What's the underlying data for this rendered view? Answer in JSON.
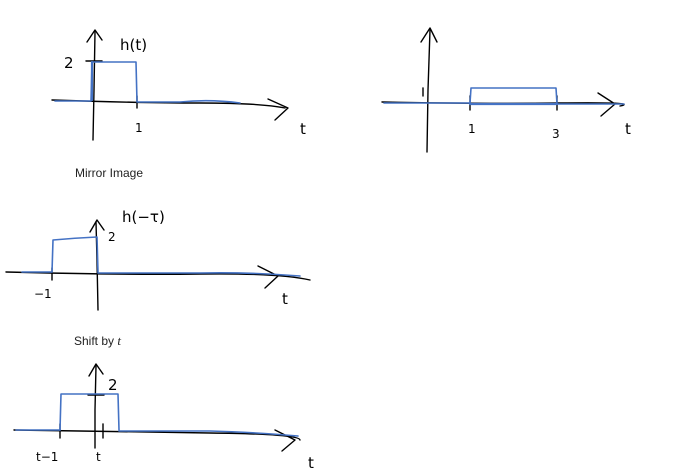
{
  "sketch1": {
    "label": "h(t)",
    "y_tick": "2",
    "x_tick": "1",
    "axis_var": "t"
  },
  "sketch2": {
    "x_tick_1": "1",
    "x_tick_3": "3",
    "axis_var": "t"
  },
  "sketch3": {
    "caption": "Mirror Image",
    "label": "h(−τ)",
    "y_tick": "2",
    "x_tick": "−1",
    "axis_var": "t"
  },
  "sketch4": {
    "caption_text": "Shift by ",
    "caption_var": "t",
    "y_tick": "2",
    "x_tick_left": "t−1",
    "x_tick_right": "t",
    "axis_var": "t"
  },
  "colors": {
    "signal": "#4472c4",
    "ink": "#000000"
  }
}
